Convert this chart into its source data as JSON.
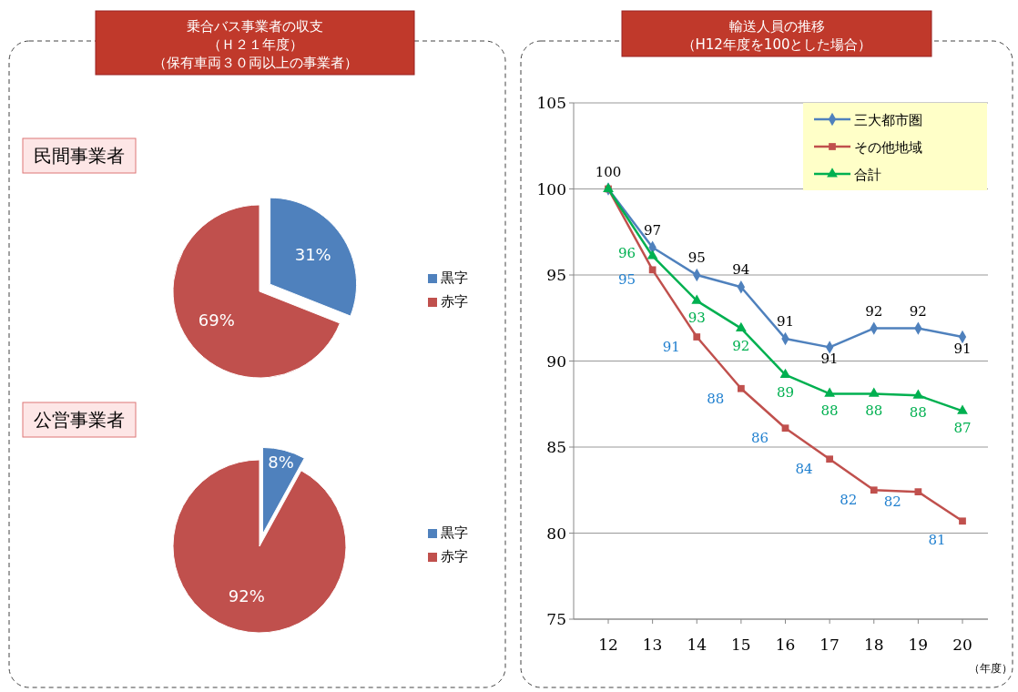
{
  "chart_data": [
    {
      "type": "pie",
      "title": "乗合バス事業者の収支（Ｈ２１年度）（保有車両３０両以上の事業者）",
      "subtitle": "民間事業者",
      "categories": [
        "黒字",
        "赤字"
      ],
      "values": [
        31,
        69
      ],
      "value_labels": [
        "31%",
        "69%"
      ],
      "colors": [
        "#4f81bd",
        "#c0504d"
      ],
      "legend": "right"
    },
    {
      "type": "pie",
      "title": "公営事業者",
      "categories": [
        "黒字",
        "赤字"
      ],
      "values": [
        8,
        92
      ],
      "value_labels": [
        "8%",
        "92%"
      ],
      "colors": [
        "#4f81bd",
        "#c0504d"
      ],
      "legend": "right"
    },
    {
      "type": "line",
      "title": "輸送人員の推移",
      "subtitle": "（H12年度を100とした場合）",
      "xlabel": "（年度）",
      "categories": [
        "12",
        "13",
        "14",
        "15",
        "16",
        "17",
        "18",
        "19",
        "20"
      ],
      "ylim": [
        75,
        105
      ],
      "yticks": [
        75,
        80,
        85,
        90,
        95,
        100,
        105
      ],
      "grid": "y",
      "legend": "top right",
      "series": [
        {
          "name": "三大都市圏",
          "color": "#4f81bd",
          "marker": "diamond",
          "values": [
            100,
            96.6,
            95.0,
            94.3,
            91.3,
            90.8,
            91.9,
            91.9,
            91.4
          ],
          "value_labels": [
            "100",
            "97",
            "95",
            "94",
            "91",
            "91",
            "92",
            "92",
            "91"
          ]
        },
        {
          "name": "その他地域",
          "color": "#c0504d",
          "marker": "square",
          "values": [
            100,
            95.3,
            91.4,
            88.4,
            86.1,
            84.3,
            82.5,
            82.4,
            80.7
          ],
          "value_labels": [
            null,
            "95",
            "91",
            "88",
            "86",
            "84",
            "82",
            "82",
            "81"
          ]
        },
        {
          "name": "合計",
          "color": "#00b050",
          "marker": "triangle",
          "values": [
            100,
            96.1,
            93.5,
            91.9,
            89.2,
            88.1,
            88.1,
            88.0,
            87.1
          ],
          "value_labels": [
            null,
            "96",
            "93",
            "92",
            "89",
            "88",
            "88",
            "88",
            "87"
          ]
        }
      ]
    }
  ]
}
